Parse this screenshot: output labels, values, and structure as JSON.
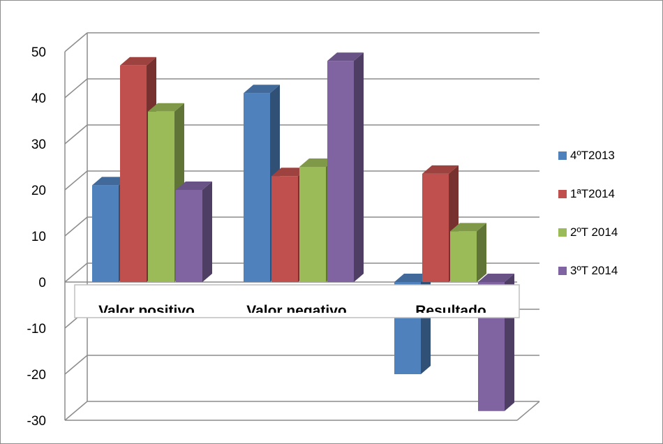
{
  "chart_data": {
    "type": "bar",
    "categories": [
      "Valor positivo",
      "Valor negativo",
      "Resultado"
    ],
    "series": [
      {
        "name": "4ºT2013",
        "values": [
          21,
          41,
          -20
        ],
        "color": "#4F81BD"
      },
      {
        "name": "1ªT2014",
        "values": [
          47,
          23,
          23.5
        ],
        "color": "#C0504D"
      },
      {
        "name": "2ºT 2014",
        "values": [
          37,
          25,
          11
        ],
        "color": "#9BBB59"
      },
      {
        "name": "3ºT 2014",
        "values": [
          20,
          48,
          -28
        ],
        "color": "#8064A2"
      }
    ],
    "yticks": [
      50,
      40,
      30,
      20,
      10,
      0,
      -10,
      -20,
      -30
    ],
    "ylim": [
      -30,
      50
    ],
    "grid": true,
    "legend_position": "right",
    "style": "3d-column"
  }
}
